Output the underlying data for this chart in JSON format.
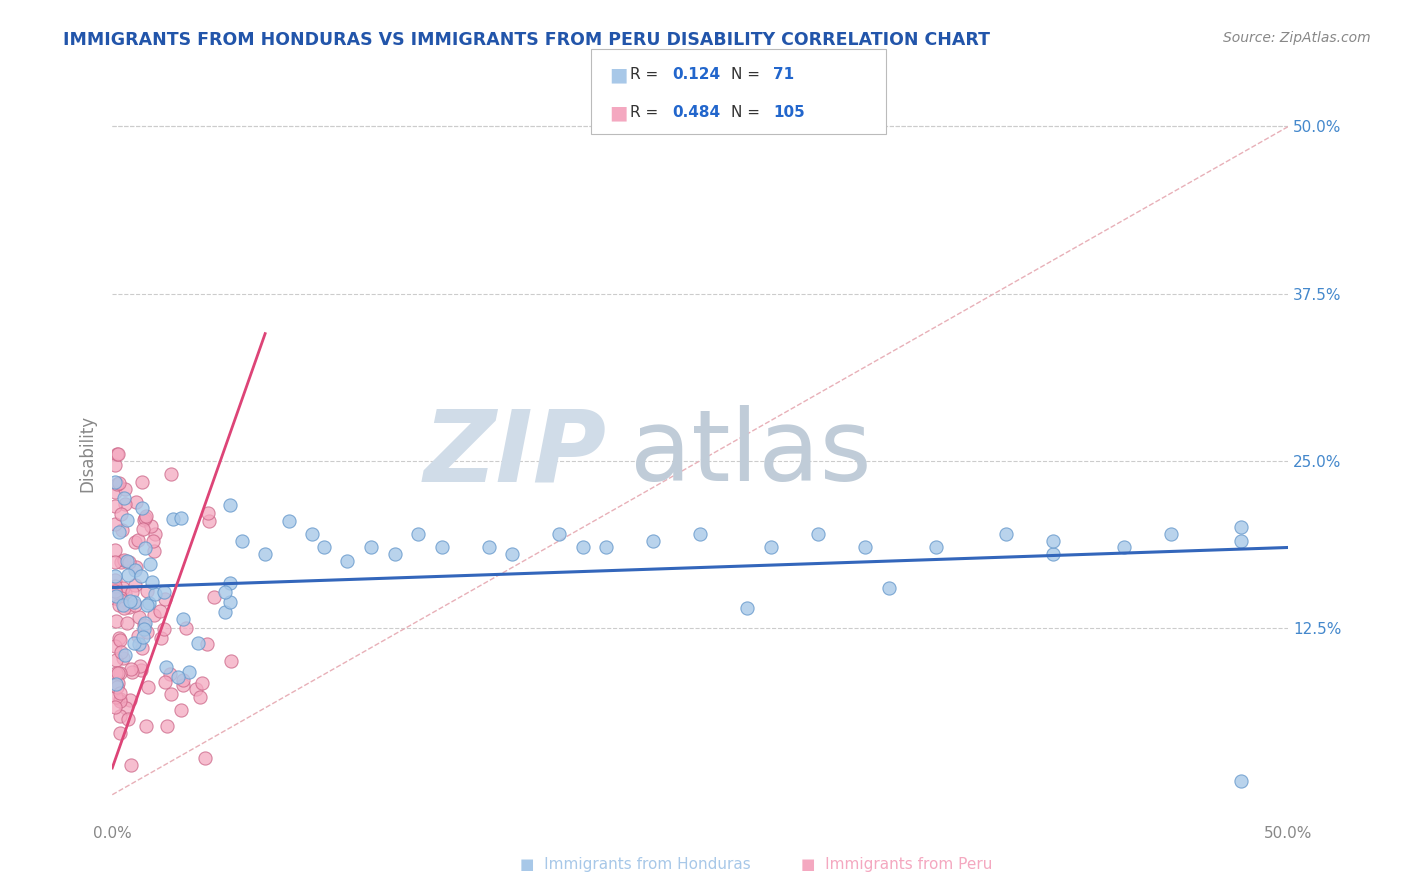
{
  "title": "IMMIGRANTS FROM HONDURAS VS IMMIGRANTS FROM PERU DISABILITY CORRELATION CHART",
  "source": "Source: ZipAtlas.com",
  "ylabel": "Disability",
  "xlim": [
    0.0,
    0.5
  ],
  "ylim": [
    -0.02,
    0.53
  ],
  "x_ticks": [
    0.0,
    0.5
  ],
  "x_tick_labels": [
    "0.0%",
    "50.0%"
  ],
  "y_ticks": [
    0.125,
    0.25,
    0.375,
    0.5
  ],
  "y_tick_labels": [
    "12.5%",
    "25.0%",
    "37.5%",
    "50.0%"
  ],
  "honduras_color": "#a8c8e8",
  "honduras_edge": "#6699cc",
  "honduras_line": "#3366bb",
  "peru_color": "#f4a8c0",
  "peru_edge": "#cc6688",
  "peru_line": "#dd4477",
  "diagonal_color": "#e8b0b8",
  "background_color": "#ffffff",
  "title_color": "#2255aa",
  "axis_label_color": "#888888",
  "grid_color": "#cccccc",
  "right_tick_color": "#4488cc",
  "legend_r_color": "#333333",
  "legend_val_color": "#2266cc",
  "watermark_zip_color": "#d0dce8",
  "watermark_atlas_color": "#c0ccd8"
}
